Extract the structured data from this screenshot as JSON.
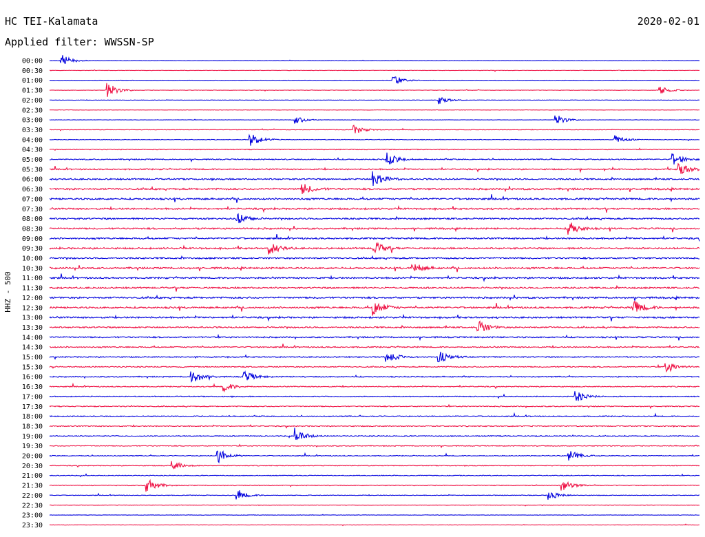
{
  "header": {
    "station": "HC TEI-Kalamata",
    "date": "2020-02-01",
    "filter": "Applied filter: WWSSN-SP"
  },
  "chart_data": {
    "type": "line",
    "subtype": "helicorder",
    "ylabel": "HHZ - 500",
    "row_labels": [
      "00:00",
      "00:30",
      "01:00",
      "01:30",
      "02:00",
      "02:30",
      "03:00",
      "03:30",
      "04:00",
      "04:30",
      "05:00",
      "05:30",
      "06:00",
      "06:30",
      "07:00",
      "07:30",
      "08:00",
      "08:30",
      "09:00",
      "09:30",
      "10:00",
      "10:30",
      "11:00",
      "11:30",
      "12:00",
      "12:30",
      "13:00",
      "13:30",
      "14:00",
      "14:30",
      "15:00",
      "15:30",
      "16:00",
      "16:30",
      "17:00",
      "17:30",
      "18:00",
      "18:30",
      "19:00",
      "19:30",
      "20:00",
      "20:30",
      "21:00",
      "21:30",
      "22:00",
      "22:30",
      "23:00",
      "23:30"
    ],
    "colors": [
      "#0000dd",
      "#ee1144"
    ],
    "activity": [
      0.3,
      0.3,
      0.3,
      0.35,
      0.3,
      0.25,
      0.3,
      0.4,
      0.5,
      0.6,
      0.9,
      1.0,
      1.2,
      1.4,
      1.4,
      1.3,
      1.3,
      1.3,
      1.3,
      1.3,
      1.3,
      1.4,
      1.3,
      1.3,
      1.4,
      1.4,
      1.3,
      1.2,
      1.1,
      1.0,
      0.9,
      0.9,
      0.9,
      0.8,
      0.8,
      0.8,
      0.8,
      0.8,
      0.8,
      0.7,
      0.7,
      0.6,
      0.6,
      0.6,
      0.5,
      0.4,
      0.35,
      0.3
    ],
    "events": [
      {
        "row": 0,
        "x": 0.02,
        "amp": 1.0
      },
      {
        "row": 2,
        "x": 0.53,
        "amp": 0.8
      },
      {
        "row": 3,
        "x": 0.09,
        "amp": 1.4
      },
      {
        "row": 3,
        "x": 0.94,
        "amp": 0.7
      },
      {
        "row": 4,
        "x": 0.6,
        "amp": 0.7
      },
      {
        "row": 6,
        "x": 0.38,
        "amp": 0.7
      },
      {
        "row": 6,
        "x": 0.78,
        "amp": 1.0
      },
      {
        "row": 7,
        "x": 0.47,
        "amp": 0.8
      },
      {
        "row": 8,
        "x": 0.31,
        "amp": 1.2
      },
      {
        "row": 8,
        "x": 0.87,
        "amp": 0.8
      },
      {
        "row": 10,
        "x": 0.52,
        "amp": 1.2
      },
      {
        "row": 10,
        "x": 0.96,
        "amp": 1.1
      },
      {
        "row": 11,
        "x": 0.97,
        "amp": 1.2
      },
      {
        "row": 12,
        "x": 0.5,
        "amp": 1.6
      },
      {
        "row": 13,
        "x": 0.39,
        "amp": 1.0
      },
      {
        "row": 16,
        "x": 0.29,
        "amp": 1.0
      },
      {
        "row": 17,
        "x": 0.8,
        "amp": 1.2
      },
      {
        "row": 19,
        "x": 0.34,
        "amp": 1.0
      },
      {
        "row": 19,
        "x": 0.5,
        "amp": 1.2
      },
      {
        "row": 21,
        "x": 0.56,
        "amp": 1.0
      },
      {
        "row": 25,
        "x": 0.5,
        "amp": 1.4
      },
      {
        "row": 25,
        "x": 0.9,
        "amp": 1.2
      },
      {
        "row": 27,
        "x": 0.66,
        "amp": 1.2
      },
      {
        "row": 30,
        "x": 0.52,
        "amp": 1.0
      },
      {
        "row": 30,
        "x": 0.6,
        "amp": 1.0
      },
      {
        "row": 31,
        "x": 0.95,
        "amp": 1.0
      },
      {
        "row": 32,
        "x": 0.22,
        "amp": 1.2
      },
      {
        "row": 32,
        "x": 0.3,
        "amp": 1.0
      },
      {
        "row": 33,
        "x": 0.27,
        "amp": 0.8
      },
      {
        "row": 34,
        "x": 0.81,
        "amp": 1.0
      },
      {
        "row": 38,
        "x": 0.38,
        "amp": 1.2
      },
      {
        "row": 40,
        "x": 0.26,
        "amp": 1.2
      },
      {
        "row": 40,
        "x": 0.8,
        "amp": 1.0
      },
      {
        "row": 41,
        "x": 0.19,
        "amp": 0.8
      },
      {
        "row": 43,
        "x": 0.15,
        "amp": 1.4
      },
      {
        "row": 43,
        "x": 0.79,
        "amp": 1.0
      },
      {
        "row": 44,
        "x": 0.29,
        "amp": 0.8
      },
      {
        "row": 44,
        "x": 0.77,
        "amp": 0.8
      }
    ]
  }
}
